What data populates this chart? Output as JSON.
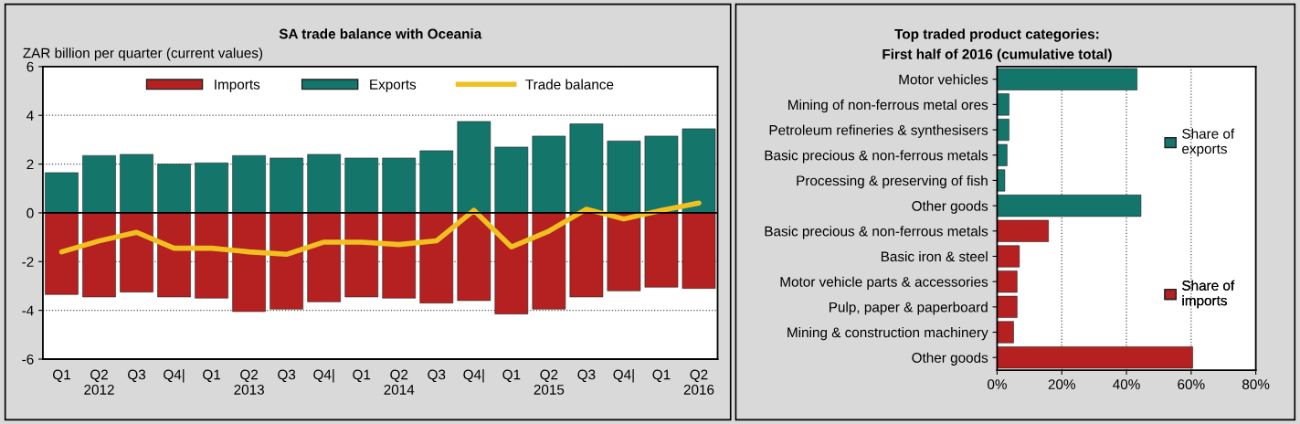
{
  "chart_data": [
    {
      "type": "bar",
      "title": "SA trade balance with Oceania",
      "ylabel": "ZAR billion per quarter (current values)",
      "categories": [
        "Q1",
        "Q2\n2012",
        "Q3",
        "Q4|",
        "Q1",
        "Q2\n2013",
        "Q3",
        "Q4|",
        "Q1",
        "Q2\n2014",
        "Q3",
        "Q4|",
        "Q1",
        "Q2\n2015",
        "Q3",
        "Q4|",
        "Q1",
        "Q2\n2016"
      ],
      "series": [
        {
          "name": "Imports",
          "type": "bar",
          "color": "#b52020",
          "values": [
            -3.35,
            -3.45,
            -3.25,
            -3.45,
            -3.5,
            -4.05,
            -3.95,
            -3.65,
            -3.45,
            -3.5,
            -3.7,
            -3.6,
            -4.15,
            -3.95,
            -3.45,
            -3.2,
            -3.05,
            -3.1
          ]
        },
        {
          "name": "Exports",
          "type": "bar",
          "color": "#14756a",
          "values": [
            1.65,
            2.35,
            2.4,
            2.0,
            2.05,
            2.35,
            2.25,
            2.4,
            2.25,
            2.25,
            2.55,
            3.75,
            2.7,
            3.15,
            3.65,
            2.95,
            3.15,
            3.45
          ]
        },
        {
          "name": "Trade balance",
          "type": "line",
          "color": "#f0c020",
          "values": [
            -1.6,
            -1.15,
            -0.8,
            -1.45,
            -1.45,
            -1.6,
            -1.7,
            -1.2,
            -1.2,
            -1.3,
            -1.15,
            0.1,
            -1.4,
            -0.75,
            0.15,
            -0.25,
            0.1,
            0.4
          ]
        }
      ],
      "stacked": true,
      "ylim": [
        -6,
        6
      ],
      "yticks": [
        -6,
        -4,
        -2,
        0,
        2,
        4,
        6
      ],
      "grid": "y",
      "legend": "top"
    },
    {
      "type": "bar",
      "orientation": "horizontal",
      "title": "Top traded product categories:\nFirst half of 2016 (cumulative total)",
      "categories": [
        "Motor vehicles",
        "Mining of non-ferrous metal ores",
        "Petroleum refineries & synthesisers",
        "Basic precious & non-ferrous metals",
        "Processing & preserving of fish",
        "Other goods",
        "Basic precious & non-ferrous metals",
        "Basic iron & steel",
        "Motor vehicle parts & accessories",
        "Pulp, paper & paperboard",
        "Mining & construction machinery",
        "Other goods"
      ],
      "series": [
        {
          "name": "Share of\nexports",
          "color": "#14756a",
          "values": [
            43.3,
            3.7,
            3.7,
            3.1,
            2.4,
            44.5,
            null,
            null,
            null,
            null,
            null,
            null
          ]
        },
        {
          "name": "Share of\nimports",
          "color": "#b52020",
          "values": [
            null,
            null,
            null,
            null,
            null,
            null,
            15.9,
            6.9,
            6.2,
            6.2,
            5.1,
            60.5
          ]
        }
      ],
      "xlim": [
        0,
        80
      ],
      "xticks": [
        {
          "value": 0,
          "label": "0%"
        },
        {
          "value": 20,
          "label": "20%"
        },
        {
          "value": 40,
          "label": "40%"
        },
        {
          "value": 60,
          "label": "60%"
        },
        {
          "value": 80,
          "label": "80%"
        }
      ],
      "grid": "x",
      "legend": "right"
    }
  ]
}
